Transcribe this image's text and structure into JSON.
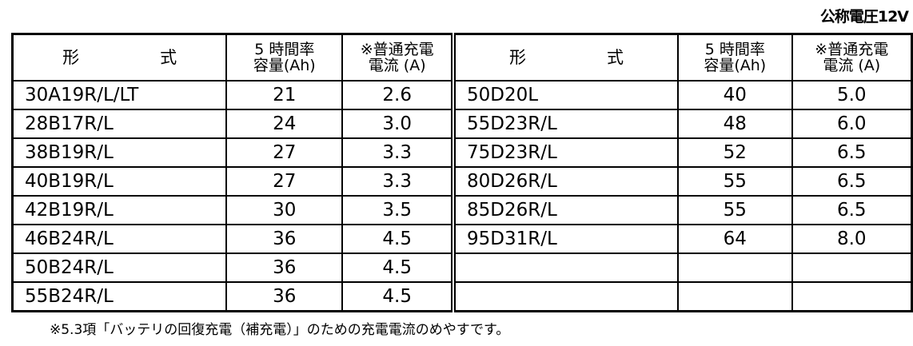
{
  "voltage_label": "公称電圧12V",
  "headers": {
    "model": "形　式",
    "capacity": "5 時間率\n容量(Ah)",
    "current": "※普通充電\n電流 (A)"
  },
  "left_rows": [
    {
      "model": "30A19R/L/LT",
      "capacity": "21",
      "current": "2.6"
    },
    {
      "model": "28B17R/L",
      "capacity": "24",
      "current": "3.0"
    },
    {
      "model": "38B19R/L",
      "capacity": "27",
      "current": "3.3"
    },
    {
      "model": "40B19R/L",
      "capacity": "27",
      "current": "3.3"
    },
    {
      "model": "42B19R/L",
      "capacity": "30",
      "current": "3.5"
    },
    {
      "model": "46B24R/L",
      "capacity": "36",
      "current": "4.5"
    },
    {
      "model": "50B24R/L",
      "capacity": "36",
      "current": "4.5"
    },
    {
      "model": "55B24R/L",
      "capacity": "36",
      "current": "4.5"
    }
  ],
  "right_rows": [
    {
      "model": "50D20L",
      "capacity": "40",
      "current": "5.0"
    },
    {
      "model": "55D23R/L",
      "capacity": "48",
      "current": "6.0"
    },
    {
      "model": "75D23R/L",
      "capacity": "52",
      "current": "6.5"
    },
    {
      "model": "80D26R/L",
      "capacity": "55",
      "current": "6.5"
    },
    {
      "model": "85D26R/L",
      "capacity": "55",
      "current": "6.5"
    },
    {
      "model": "95D31R/L",
      "capacity": "64",
      "current": "8.0"
    },
    {
      "model": "",
      "capacity": "",
      "current": ""
    },
    {
      "model": "",
      "capacity": "",
      "current": ""
    }
  ],
  "footnote": "※5.3項「バッテリの回復充電（補充電）」のための充電電流のめやすです。"
}
